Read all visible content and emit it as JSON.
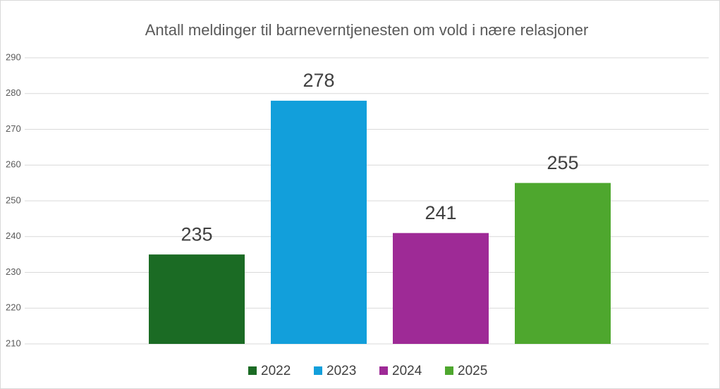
{
  "chart_data": {
    "type": "bar",
    "title": "Antall meldinger til barneverntjenesten om vold i nære relasjoner",
    "categories": [
      null
    ],
    "series": [
      {
        "name": "2022",
        "color": "#1b6b24",
        "values": [
          235
        ]
      },
      {
        "name": "2023",
        "color": "#129fdb",
        "values": [
          278
        ]
      },
      {
        "name": "2024",
        "color": "#9e2a96",
        "values": [
          241
        ]
      },
      {
        "name": "2025",
        "color": "#4ea72e",
        "values": [
          255
        ]
      }
    ],
    "ylim": [
      210,
      290
    ],
    "yticks": [
      210,
      220,
      230,
      240,
      250,
      260,
      270,
      280,
      290
    ],
    "grid": true,
    "legend": "bottom"
  }
}
